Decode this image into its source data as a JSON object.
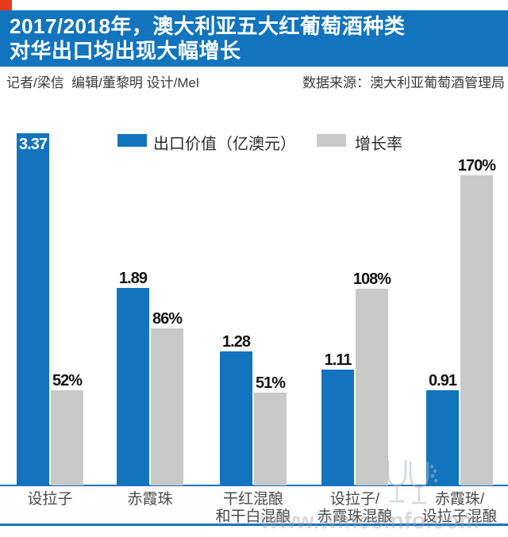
{
  "header": {
    "title_line1": "2017/2018年，澳大利亚五大红葡萄酒种类",
    "title_line2": "对华出口均出现大幅增长",
    "byline": "记者/梁信  编辑/董黎明 设计/Mel",
    "source": "数据来源：澳大利亚葡萄酒管理局"
  },
  "legend": {
    "series1_label": "出口价值（亿澳元）",
    "series2_label": "增长率"
  },
  "colors": {
    "brand_blue": "#1274bd",
    "bar_gray": "#c9c9ca",
    "accent_red": "#e8391d"
  },
  "watermark": {
    "text": "www.winesinfo.com",
    "icon": "wine-glasses"
  },
  "chart_data": {
    "type": "bar",
    "title": "2017/2018年，澳大利亚五大红葡萄酒种类对华出口均出现大幅增长",
    "categories": [
      [
        "设拉子"
      ],
      [
        "赤霞珠"
      ],
      [
        "干红混酿",
        "和干白混酿"
      ],
      [
        "设拉子/",
        "赤霞珠混酿"
      ],
      [
        "赤霞珠/",
        "设拉子混酿"
      ]
    ],
    "series": [
      {
        "name": "出口价值（亿澳元）",
        "color": "#1274bd",
        "values": [
          3.37,
          1.89,
          1.28,
          1.11,
          0.91
        ],
        "labels": [
          "3.37",
          "1.89",
          "1.28",
          "1.11",
          "0.91"
        ]
      },
      {
        "name": "增长率",
        "color": "#c9c9ca",
        "values": [
          52,
          86,
          51,
          108,
          170
        ],
        "labels": [
          "52%",
          "86%",
          "51%",
          "108%",
          "170%"
        ]
      }
    ],
    "legend_position": "top",
    "grid": false,
    "value_axis_visible": false
  }
}
